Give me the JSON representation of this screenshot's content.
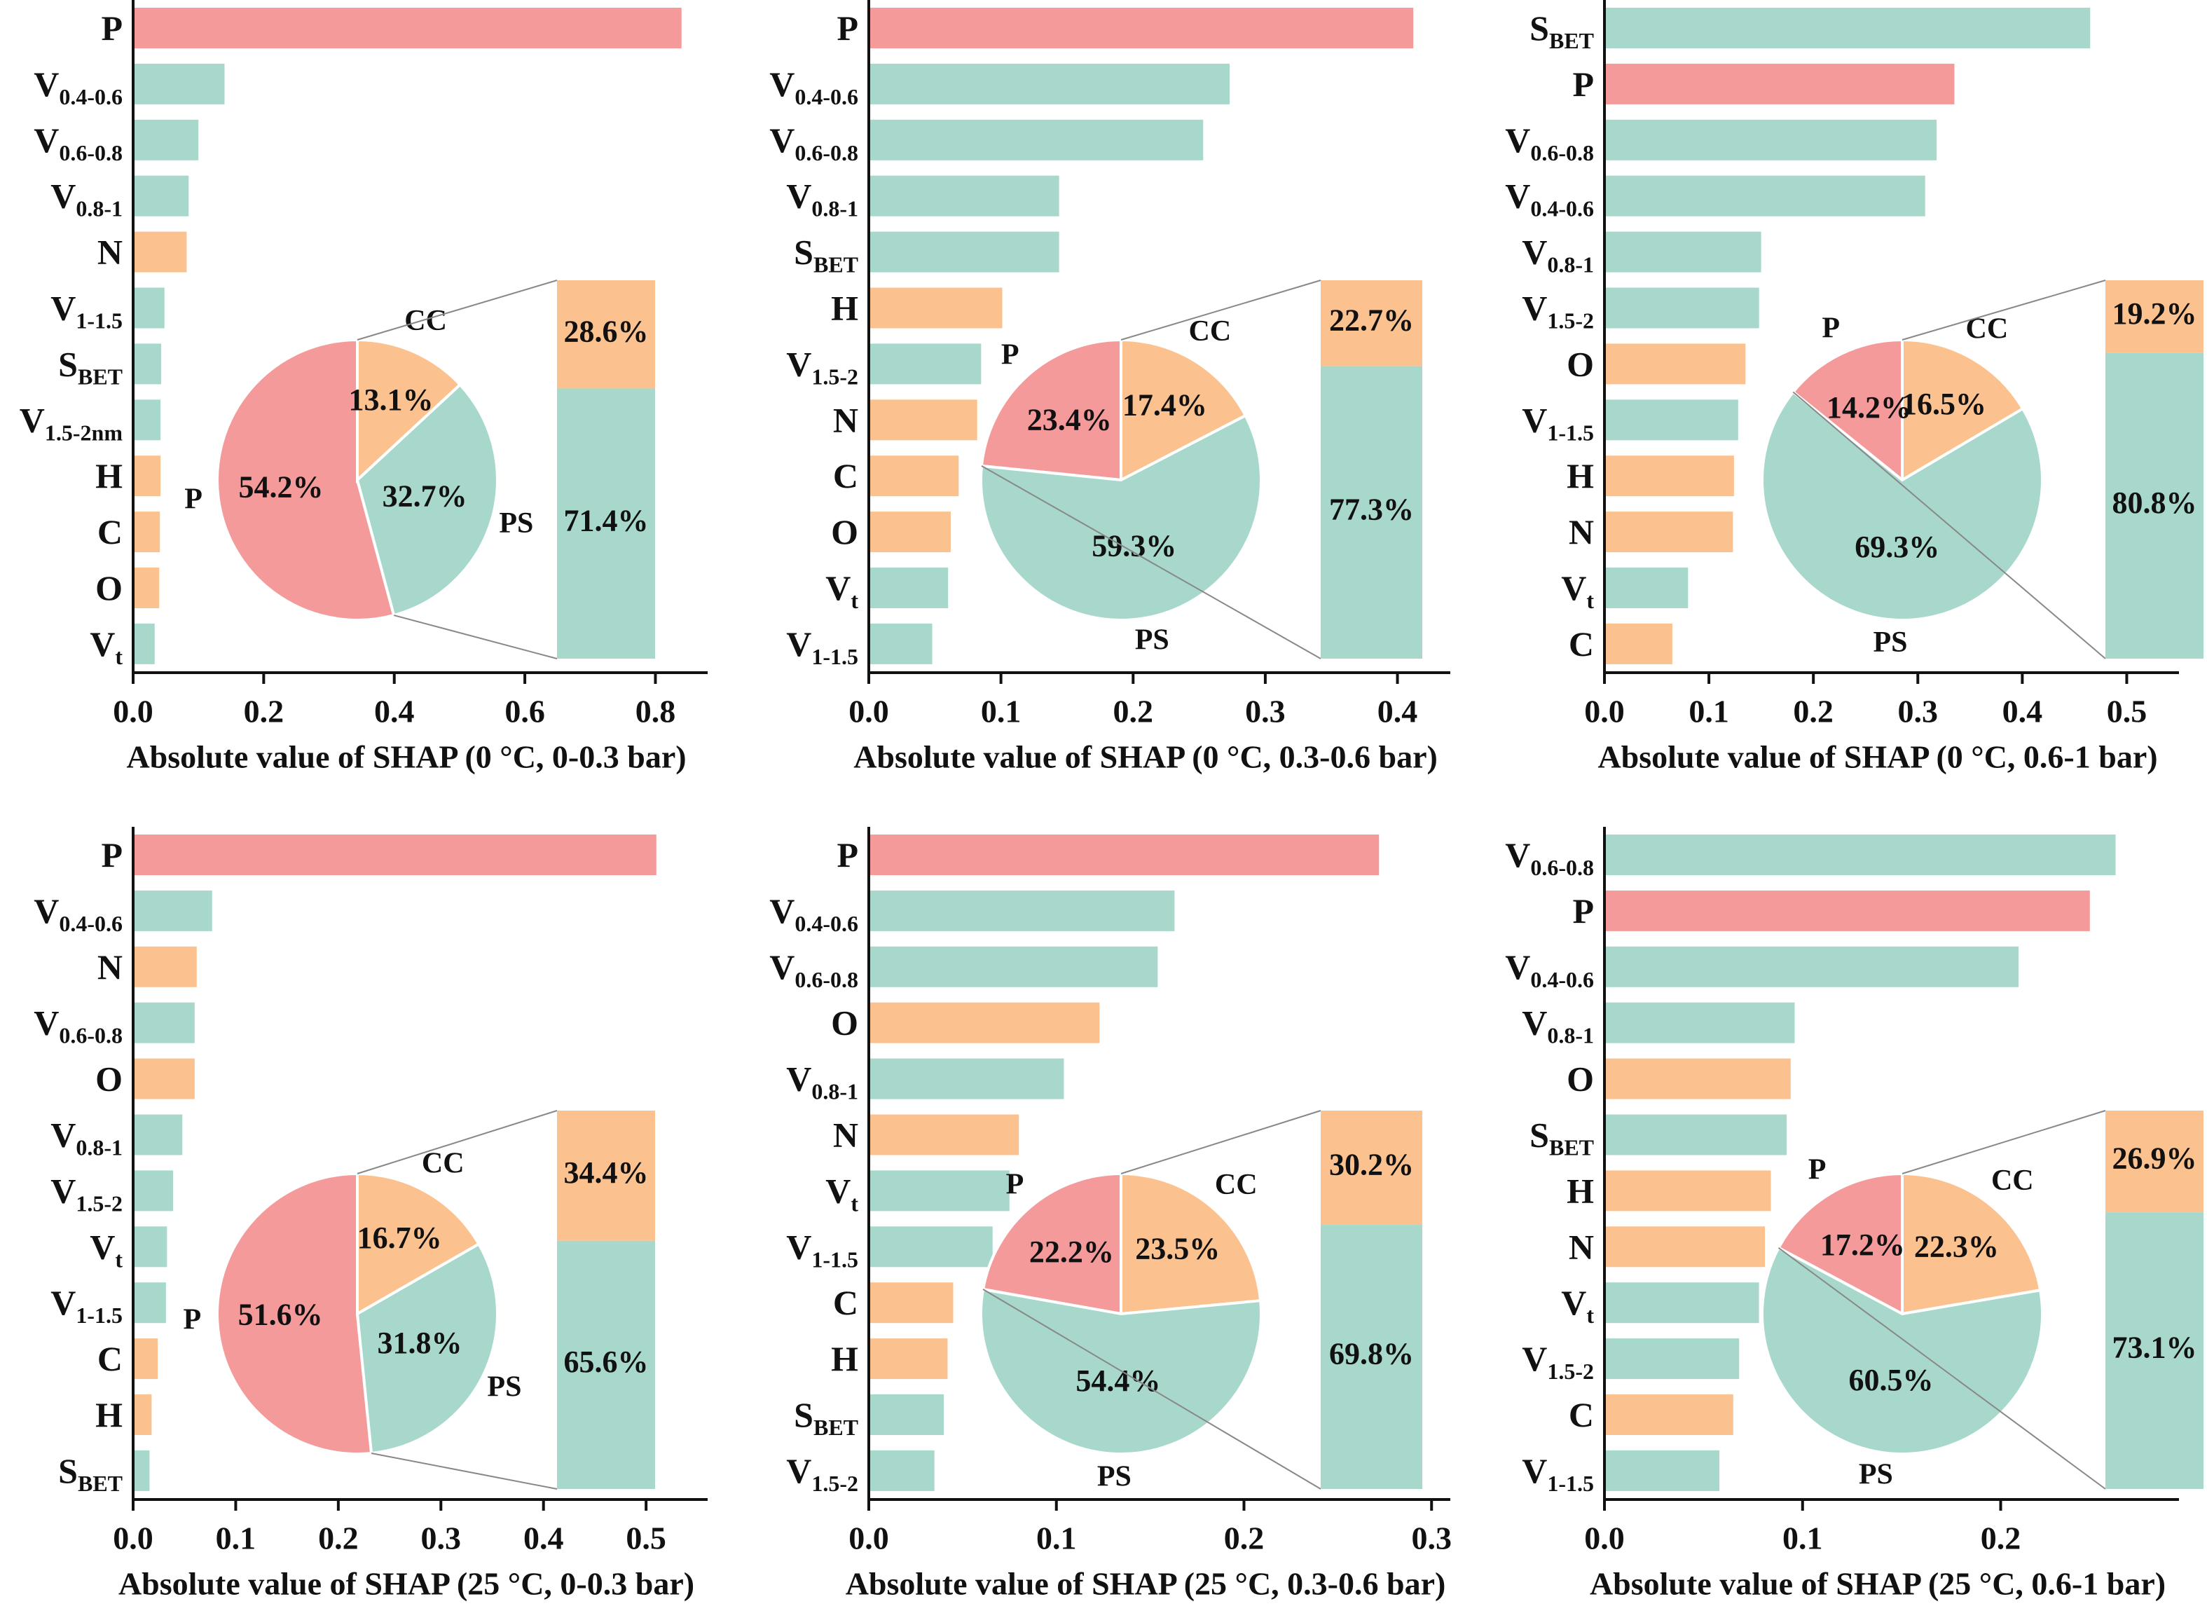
{
  "colors": {
    "P": "#f49a9a",
    "PS": "#a8d8cb",
    "CC": "#fbc28f",
    "axis": "#111111",
    "zoom_line": "#888888"
  },
  "group_labels": {
    "P": "P",
    "PS": "PS",
    "CC": "CC"
  },
  "chart_data": [
    {
      "type": "bar",
      "title": "",
      "xlabel": "Absolute value of SHAP (0 °C, 0-0.3 bar)",
      "xlim": [
        0,
        0.88
      ],
      "xticks": [
        "0.0",
        "0.2",
        "0.4",
        "0.6",
        "0.8"
      ],
      "grid": false,
      "categories": [
        {
          "base": "P",
          "sub": "",
          "value": 0.84,
          "group": "P"
        },
        {
          "base": "V",
          "sub": "0.4-0.6",
          "value": 0.14,
          "group": "PS"
        },
        {
          "base": "V",
          "sub": "0.6-0.8",
          "value": 0.1,
          "group": "PS"
        },
        {
          "base": "V",
          "sub": "0.8-1",
          "value": 0.085,
          "group": "PS"
        },
        {
          "base": "N",
          "sub": "",
          "value": 0.082,
          "group": "CC"
        },
        {
          "base": "V",
          "sub": "1-1.5",
          "value": 0.048,
          "group": "PS"
        },
        {
          "base": "S",
          "sub": "BET",
          "value": 0.043,
          "group": "PS"
        },
        {
          "base": "V",
          "sub": "1.5-2nm",
          "value": 0.042,
          "group": "PS"
        },
        {
          "base": "H",
          "sub": "",
          "value": 0.042,
          "group": "CC"
        },
        {
          "base": "C",
          "sub": "",
          "value": 0.041,
          "group": "CC"
        },
        {
          "base": "O",
          "sub": "",
          "value": 0.04,
          "group": "CC"
        },
        {
          "base": "V",
          "sub": "t",
          "value": 0.033,
          "group": "PS"
        }
      ],
      "pie": {
        "P": "54.2%",
        "PS": "32.7%",
        "CC": "13.1%"
      },
      "stack": {
        "CC": "28.6%",
        "PS": "71.4%"
      }
    },
    {
      "type": "bar",
      "title": "",
      "xlabel": "Absolute value of SHAP (0 °C, 0.3-0.6 bar)",
      "xlim": [
        0,
        0.44
      ],
      "xticks": [
        "0.0",
        "0.1",
        "0.2",
        "0.3",
        "0.4"
      ],
      "grid": false,
      "categories": [
        {
          "base": "P",
          "sub": "",
          "value": 0.412,
          "group": "P"
        },
        {
          "base": "V",
          "sub": "0.4-0.6",
          "value": 0.273,
          "group": "PS"
        },
        {
          "base": "V",
          "sub": "0.6-0.8",
          "value": 0.253,
          "group": "PS"
        },
        {
          "base": "V",
          "sub": "0.8-1",
          "value": 0.144,
          "group": "PS"
        },
        {
          "base": "S",
          "sub": "BET",
          "value": 0.144,
          "group": "PS"
        },
        {
          "base": "H",
          "sub": "",
          "value": 0.101,
          "group": "CC"
        },
        {
          "base": "V",
          "sub": "1.5-2",
          "value": 0.085,
          "group": "PS"
        },
        {
          "base": "N",
          "sub": "",
          "value": 0.082,
          "group": "CC"
        },
        {
          "base": "C",
          "sub": "",
          "value": 0.068,
          "group": "CC"
        },
        {
          "base": "O",
          "sub": "",
          "value": 0.062,
          "group": "CC"
        },
        {
          "base": "V",
          "sub": "t",
          "value": 0.06,
          "group": "PS"
        },
        {
          "base": "V",
          "sub": "1-1.5",
          "value": 0.048,
          "group": "PS"
        }
      ],
      "pie": {
        "P": "23.4%",
        "PS": "59.3%",
        "CC": "17.4%"
      },
      "stack": {
        "CC": "22.7%",
        "PS": "77.3%"
      }
    },
    {
      "type": "bar",
      "title": "",
      "xlabel": "Absolute value of SHAP (0 °C, 0.6-1 bar)",
      "xlim": [
        0,
        0.55
      ],
      "xticks": [
        "0.0",
        "0.1",
        "0.2",
        "0.3",
        "0.4",
        "0.5"
      ],
      "grid": false,
      "categories": [
        {
          "base": "S",
          "sub": "BET",
          "value": 0.465,
          "group": "PS"
        },
        {
          "base": "P",
          "sub": "",
          "value": 0.335,
          "group": "P"
        },
        {
          "base": "V",
          "sub": "0.6-0.8",
          "value": 0.318,
          "group": "PS"
        },
        {
          "base": "V",
          "sub": "0.4-0.6",
          "value": 0.307,
          "group": "PS"
        },
        {
          "base": "V",
          "sub": "0.8-1",
          "value": 0.15,
          "group": "PS"
        },
        {
          "base": "V",
          "sub": "1.5-2",
          "value": 0.148,
          "group": "PS"
        },
        {
          "base": "O",
          "sub": "",
          "value": 0.135,
          "group": "CC"
        },
        {
          "base": "V",
          "sub": "1-1.5",
          "value": 0.128,
          "group": "PS"
        },
        {
          "base": "H",
          "sub": "",
          "value": 0.124,
          "group": "CC"
        },
        {
          "base": "N",
          "sub": "",
          "value": 0.123,
          "group": "CC"
        },
        {
          "base": "V",
          "sub": "t",
          "value": 0.08,
          "group": "PS"
        },
        {
          "base": "C",
          "sub": "",
          "value": 0.065,
          "group": "CC"
        }
      ],
      "pie": {
        "P": "14.2%",
        "PS": "69.3%",
        "CC": "16.5%"
      },
      "stack": {
        "CC": "19.2%",
        "PS": "80.8%"
      }
    },
    {
      "type": "bar",
      "title": "",
      "xlabel": "Absolute value of SHAP (25 °C, 0-0.3 bar)",
      "xlim": [
        0,
        0.56
      ],
      "xticks": [
        "0.0",
        "0.1",
        "0.2",
        "0.3",
        "0.4",
        "0.5"
      ],
      "grid": false,
      "categories": [
        {
          "base": "P",
          "sub": "",
          "value": 0.51,
          "group": "P"
        },
        {
          "base": "V",
          "sub": "0.4-0.6",
          "value": 0.077,
          "group": "PS"
        },
        {
          "base": "N",
          "sub": "",
          "value": 0.062,
          "group": "CC"
        },
        {
          "base": "V",
          "sub": "0.6-0.8",
          "value": 0.06,
          "group": "PS"
        },
        {
          "base": "O",
          "sub": "",
          "value": 0.06,
          "group": "CC"
        },
        {
          "base": "V",
          "sub": "0.8-1",
          "value": 0.048,
          "group": "PS"
        },
        {
          "base": "V",
          "sub": "1.5-2",
          "value": 0.039,
          "group": "PS"
        },
        {
          "base": "V",
          "sub": "t",
          "value": 0.033,
          "group": "PS"
        },
        {
          "base": "V",
          "sub": "1-1.5",
          "value": 0.032,
          "group": "PS"
        },
        {
          "base": "C",
          "sub": "",
          "value": 0.024,
          "group": "CC"
        },
        {
          "base": "H",
          "sub": "",
          "value": 0.018,
          "group": "CC"
        },
        {
          "base": "S",
          "sub": "BET",
          "value": 0.016,
          "group": "PS"
        }
      ],
      "pie": {
        "P": "51.6%",
        "PS": "31.8%",
        "CC": "16.7%"
      },
      "stack": {
        "CC": "34.4%",
        "PS": "65.6%"
      }
    },
    {
      "type": "bar",
      "title": "",
      "xlabel": "Absolute value of SHAP (25 °C, 0.3-0.6 bar)",
      "xlim": [
        0,
        0.31
      ],
      "xticks": [
        "0.0",
        "0.1",
        "0.2",
        "0.3"
      ],
      "grid": false,
      "categories": [
        {
          "base": "P",
          "sub": "",
          "value": 0.272,
          "group": "P"
        },
        {
          "base": "V",
          "sub": "0.4-0.6",
          "value": 0.163,
          "group": "PS"
        },
        {
          "base": "V",
          "sub": "0.6-0.8",
          "value": 0.154,
          "group": "PS"
        },
        {
          "base": "O",
          "sub": "",
          "value": 0.123,
          "group": "CC"
        },
        {
          "base": "V",
          "sub": "0.8-1",
          "value": 0.104,
          "group": "PS"
        },
        {
          "base": "N",
          "sub": "",
          "value": 0.08,
          "group": "CC"
        },
        {
          "base": "V",
          "sub": "t",
          "value": 0.075,
          "group": "PS"
        },
        {
          "base": "V",
          "sub": "1-1.5",
          "value": 0.066,
          "group": "PS"
        },
        {
          "base": "C",
          "sub": "",
          "value": 0.045,
          "group": "CC"
        },
        {
          "base": "H",
          "sub": "",
          "value": 0.042,
          "group": "CC"
        },
        {
          "base": "S",
          "sub": "BET",
          "value": 0.04,
          "group": "PS"
        },
        {
          "base": "V",
          "sub": "1.5-2",
          "value": 0.035,
          "group": "PS"
        }
      ],
      "pie": {
        "P": "22.2%",
        "PS": "54.4%",
        "CC": "23.5%"
      },
      "stack": {
        "CC": "30.2%",
        "PS": "69.8%"
      }
    },
    {
      "type": "bar",
      "title": "",
      "xlabel": "Absolute value of SHAP (25 °C, 0.6-1 bar)",
      "xlim": [
        0,
        0.29
      ],
      "xticks": [
        "0.0",
        "0.1",
        "0.2"
      ],
      "grid": false,
      "categories": [
        {
          "base": "V",
          "sub": "0.6-0.8",
          "value": 0.258,
          "group": "PS"
        },
        {
          "base": "P",
          "sub": "",
          "value": 0.245,
          "group": "P"
        },
        {
          "base": "V",
          "sub": "0.4-0.6",
          "value": 0.209,
          "group": "PS"
        },
        {
          "base": "V",
          "sub": "0.8-1",
          "value": 0.096,
          "group": "PS"
        },
        {
          "base": "O",
          "sub": "",
          "value": 0.094,
          "group": "CC"
        },
        {
          "base": "S",
          "sub": "BET",
          "value": 0.092,
          "group": "PS"
        },
        {
          "base": "H",
          "sub": "",
          "value": 0.084,
          "group": "CC"
        },
        {
          "base": "N",
          "sub": "",
          "value": 0.081,
          "group": "CC"
        },
        {
          "base": "V",
          "sub": "t",
          "value": 0.078,
          "group": "PS"
        },
        {
          "base": "V",
          "sub": "1.5-2",
          "value": 0.068,
          "group": "PS"
        },
        {
          "base": "C",
          "sub": "",
          "value": 0.065,
          "group": "CC"
        },
        {
          "base": "V",
          "sub": "1-1.5",
          "value": 0.058,
          "group": "PS"
        }
      ],
      "pie": {
        "P": "17.2%",
        "PS": "60.5%",
        "CC": "22.3%"
      },
      "stack": {
        "CC": "26.9%",
        "PS": "73.1%"
      }
    }
  ]
}
